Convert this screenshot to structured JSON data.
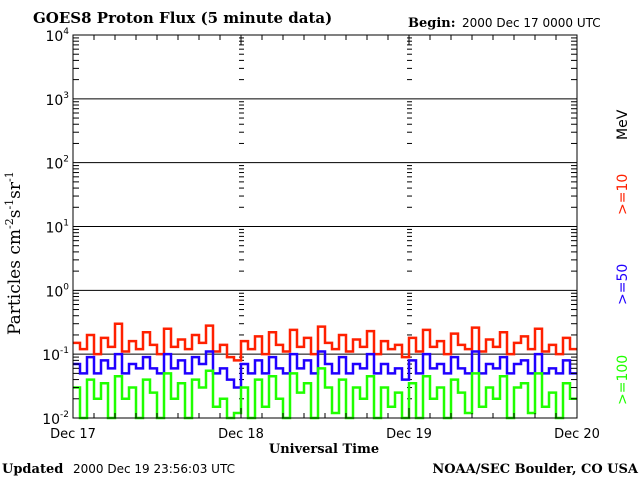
{
  "chart_data": {
    "type": "line",
    "title": "GOES8 Proton Flux (5 minute data)",
    "begin_label": "Begin:",
    "begin_value": "2000 Dec 17 0000 UTC",
    "xlabel": "Universal Time",
    "ylabel_main": "Particles cm",
    "ylabel_parts": [
      "-2",
      "s",
      "-1",
      "sr",
      "-1"
    ],
    "x_tick_labels": [
      "Dec 17",
      "Dec 18",
      "Dec 19",
      "Dec 20"
    ],
    "xlim_hours": [
      0,
      72
    ],
    "y_scale": "log",
    "ylim": [
      0.01,
      10000
    ],
    "y_tick_exponents": [
      "4",
      "3",
      "2",
      "1",
      "0",
      "-1",
      "-2"
    ],
    "grid": true,
    "series": [
      {
        "name": ">=10",
        "unit": "MeV",
        "color": "#ff2000",
        "values": [
          0.15,
          0.12,
          0.2,
          0.1,
          0.18,
          0.13,
          0.3,
          0.11,
          0.16,
          0.12,
          0.22,
          0.14,
          0.1,
          0.25,
          0.13,
          0.17,
          0.12,
          0.2,
          0.15,
          0.28,
          0.11,
          0.14,
          0.09,
          0.08,
          0.16,
          0.12,
          0.19,
          0.1,
          0.22,
          0.14,
          0.11,
          0.24,
          0.13,
          0.18,
          0.1,
          0.27,
          0.15,
          0.12,
          0.2,
          0.11,
          0.17,
          0.13,
          0.23,
          0.1,
          0.16,
          0.12,
          0.14,
          0.09,
          0.18,
          0.11,
          0.24,
          0.13,
          0.16,
          0.1,
          0.21,
          0.14,
          0.12,
          0.26,
          0.11,
          0.17,
          0.13,
          0.22,
          0.1,
          0.15,
          0.19,
          0.12,
          0.25,
          0.11,
          0.14,
          0.1,
          0.18,
          0.12
        ]
      },
      {
        "name": ">=50",
        "color": "#2000ff",
        "values": [
          0.07,
          0.05,
          0.09,
          0.05,
          0.08,
          0.06,
          0.1,
          0.05,
          0.07,
          0.06,
          0.09,
          0.06,
          0.05,
          0.1,
          0.06,
          0.08,
          0.05,
          0.09,
          0.07,
          0.11,
          0.05,
          0.06,
          0.04,
          0.03,
          0.07,
          0.05,
          0.08,
          0.05,
          0.09,
          0.06,
          0.05,
          0.1,
          0.06,
          0.08,
          0.05,
          0.11,
          0.07,
          0.05,
          0.09,
          0.05,
          0.07,
          0.06,
          0.1,
          0.05,
          0.07,
          0.05,
          0.06,
          0.04,
          0.08,
          0.05,
          0.1,
          0.06,
          0.07,
          0.05,
          0.09,
          0.06,
          0.05,
          0.11,
          0.05,
          0.07,
          0.06,
          0.09,
          0.05,
          0.07,
          0.08,
          0.05,
          0.1,
          0.05,
          0.06,
          0.05,
          0.08,
          0.05
        ]
      },
      {
        "name": ">=100",
        "color": "#20ff00",
        "values": [
          0.03,
          0.01,
          0.04,
          0.02,
          0.035,
          0.009,
          0.045,
          0.02,
          0.03,
          0.01,
          0.04,
          0.025,
          0.009,
          0.05,
          0.02,
          0.035,
          0.01,
          0.04,
          0.03,
          0.055,
          0.015,
          0.02,
          0.009,
          0.012,
          0.03,
          0.01,
          0.04,
          0.015,
          0.045,
          0.02,
          0.009,
          0.05,
          0.025,
          0.035,
          0.01,
          0.06,
          0.03,
          0.012,
          0.04,
          0.01,
          0.03,
          0.02,
          0.045,
          0.009,
          0.03,
          0.015,
          0.025,
          0.01,
          0.035,
          0.01,
          0.045,
          0.02,
          0.03,
          0.009,
          0.04,
          0.025,
          0.012,
          0.05,
          0.015,
          0.03,
          0.02,
          0.045,
          0.009,
          0.03,
          0.035,
          0.012,
          0.05,
          0.015,
          0.025,
          0.01,
          0.035,
          0.02
        ]
      }
    ]
  },
  "footer": {
    "updated_label": "Updated",
    "updated_value": "2000 Dec 19 23:56:03 UTC",
    "source": "NOAA/SEC Boulder, CO USA"
  }
}
